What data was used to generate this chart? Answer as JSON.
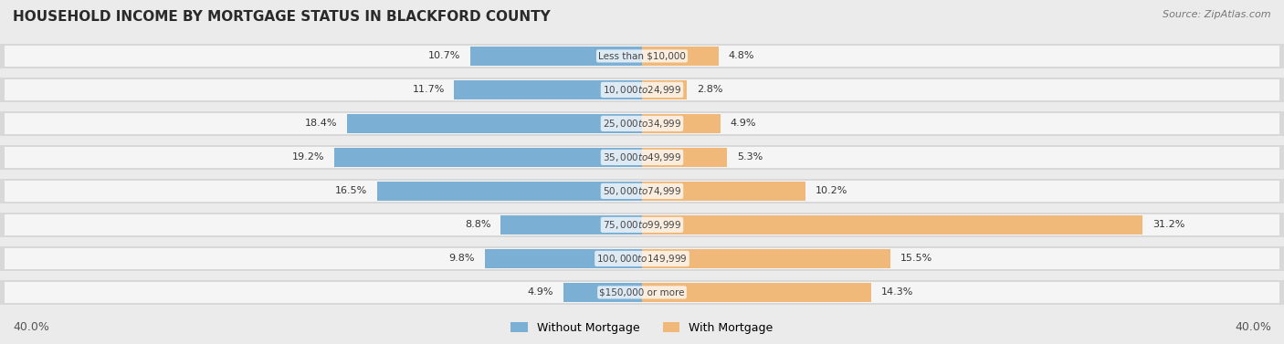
{
  "title": "HOUSEHOLD INCOME BY MORTGAGE STATUS IN BLACKFORD COUNTY",
  "source": "Source: ZipAtlas.com",
  "categories": [
    "Less than $10,000",
    "$10,000 to $24,999",
    "$25,000 to $34,999",
    "$35,000 to $49,999",
    "$50,000 to $74,999",
    "$75,000 to $99,999",
    "$100,000 to $149,999",
    "$150,000 or more"
  ],
  "without_mortgage": [
    10.7,
    11.7,
    18.4,
    19.2,
    16.5,
    8.8,
    9.8,
    4.9
  ],
  "with_mortgage": [
    4.8,
    2.8,
    4.9,
    5.3,
    10.2,
    31.2,
    15.5,
    14.3
  ],
  "without_color": "#7bafd4",
  "with_color": "#f0b97a",
  "axis_max": 40.0,
  "bg_color": "#ebebeb",
  "row_bg_color": "#d8d8d8",
  "row_inner_bg": "#f5f5f5",
  "legend_without": "Without Mortgage",
  "legend_with": "With Mortgage",
  "axis_label_left": "40.0%",
  "axis_label_right": "40.0%"
}
